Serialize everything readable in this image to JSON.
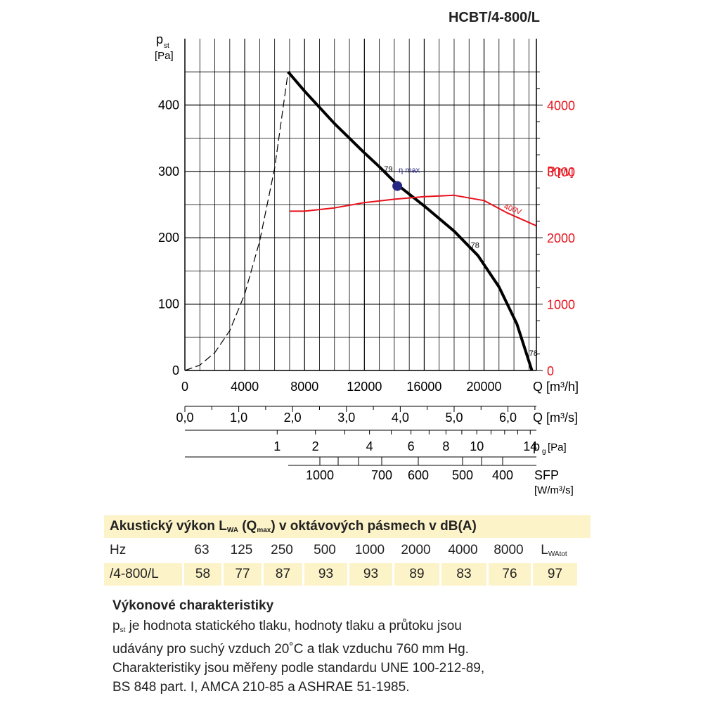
{
  "model": "HCBT/4-800/L",
  "chart_data": {
    "type": "line",
    "x_axis": {
      "label": "Q [m³/h]",
      "range": [
        0,
        23500
      ],
      "ticks": [
        "0",
        "4000",
        "8000",
        "12000",
        "16000",
        "20000"
      ]
    },
    "y_axis_left": {
      "label": "p",
      "label_sub": "st",
      "unit": "[Pa]",
      "range": [
        0,
        500
      ],
      "ticks": [
        "0",
        "100",
        "200",
        "300",
        "400"
      ]
    },
    "y_axis_right": {
      "label": "P",
      "unit": "[W]",
      "range": [
        0,
        5000
      ],
      "ticks": [
        "0",
        "1000",
        "2000",
        "3000",
        "4000"
      ],
      "color": "#e8101a"
    },
    "secondary_scales": [
      {
        "label": "Q [m³/s]",
        "ticks": [
          {
            "label": "0,0",
            "value": 0
          },
          {
            "label": "1,0",
            "value": 1.0
          },
          {
            "label": "2,0",
            "value": 2.0
          },
          {
            "label": "3,0",
            "value": 3.0
          },
          {
            "label": "4,0",
            "value": 4.0
          },
          {
            "label": "5,0",
            "value": 5.0
          },
          {
            "label": "6,0",
            "value": 6.0
          }
        ]
      },
      {
        "label": "p",
        "label_sub": "g",
        "unit": "[Pa]",
        "ticks": [
          {
            "label": "1",
            "value": 1
          },
          {
            "label": "2",
            "value": 2
          },
          {
            "label": "4",
            "value": 4
          },
          {
            "label": "6",
            "value": 6
          },
          {
            "label": "8",
            "value": 8
          },
          {
            "label": "10",
            "value": 10
          },
          {
            "label": "14",
            "value": 14
          }
        ]
      },
      {
        "label": "SFP",
        "unit": "[W/m³/s]",
        "ticks": [
          {
            "label": "1000",
            "value": 1000
          },
          {
            "label": "700",
            "value": 700
          },
          {
            "label": "600",
            "value": 600
          },
          {
            "label": "500",
            "value": 500
          },
          {
            "label": "400",
            "value": 400
          }
        ]
      }
    ],
    "series": [
      {
        "id": "pressure",
        "color": "#000000",
        "axis": "left",
        "points": [
          [
            6900,
            450
          ],
          [
            8000,
            421
          ],
          [
            10000,
            372
          ],
          [
            12000,
            328
          ],
          [
            13000,
            307
          ],
          [
            14200,
            280
          ],
          [
            16000,
            248
          ],
          [
            18000,
            210
          ],
          [
            19600,
            173
          ],
          [
            21000,
            126
          ],
          [
            22200,
            70
          ],
          [
            23200,
            0
          ]
        ]
      },
      {
        "id": "pressure-stall",
        "color": "#000000",
        "dashed": true,
        "axis": "left",
        "points": [
          [
            0,
            0
          ],
          [
            1000,
            8
          ],
          [
            2000,
            27
          ],
          [
            3000,
            60
          ],
          [
            4000,
            115
          ],
          [
            5000,
            195
          ],
          [
            6000,
            305
          ],
          [
            6900,
            450
          ]
        ]
      },
      {
        "id": "power",
        "name": "400V",
        "color": "#e8101a",
        "axis": "right",
        "points": [
          [
            7000,
            2400
          ],
          [
            8000,
            2400
          ],
          [
            10000,
            2450
          ],
          [
            12000,
            2530
          ],
          [
            14000,
            2580
          ],
          [
            16000,
            2620
          ],
          [
            18000,
            2640
          ],
          [
            20000,
            2560
          ],
          [
            21500,
            2380
          ],
          [
            23500,
            2180
          ]
        ]
      }
    ],
    "annotations": [
      {
        "text": "79",
        "x": 13600,
        "y": 300
      },
      {
        "text": "η max",
        "x": 15000,
        "y": 298,
        "color": "#2a2a8a"
      },
      {
        "text": "78",
        "x": 19400,
        "y": 185
      },
      {
        "text": "78",
        "x": 23300,
        "y": 22
      }
    ],
    "marker": {
      "x": 14200,
      "y": 278,
      "color": "#242882"
    }
  },
  "acoustic": {
    "title_main": "Akustický výkon L",
    "title_sub1": "WA",
    "title_mid": " (Q",
    "title_sub2": "max",
    "title_end": ") v oktávových pásmech v dB(A)",
    "hz_label": "Hz",
    "bands": [
      "63",
      "125",
      "250",
      "500",
      "1000",
      "2000",
      "4000",
      "8000"
    ],
    "total_label": "L",
    "total_sub": "WAtot",
    "row_label": "/4-800/L",
    "values": [
      "58",
      "77",
      "87",
      "93",
      "93",
      "89",
      "83",
      "76",
      "97"
    ]
  },
  "notes": {
    "title": "Výkonové charakteristiky",
    "p_main": "p",
    "p_sub": "st",
    "line1": " je hodnota statického tlaku, hodnoty tlaku a průtoku jsou",
    "line2": "udávány pro suchý vzduch 20˚C a tlak vzduchu 760 mm Hg.",
    "line3": "Charakteristiky jsou měřeny podle standardu UNE 100-212-89,",
    "line4": "BS 848 part. I, AMCA 210-85 a ASHRAE 51-1985."
  }
}
